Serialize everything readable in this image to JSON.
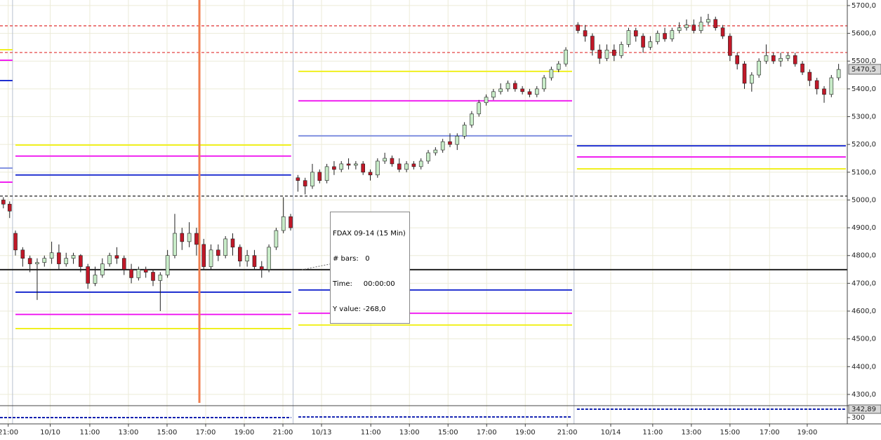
{
  "chart_data": {
    "type": "candlestick",
    "xlim": [
      -1.7,
      173.8
    ],
    "ylim": [
      4262,
      5720
    ],
    "xticks": [
      {
        "value": 0,
        "label": "21:00"
      },
      {
        "value": 8.7,
        "label": "10/10"
      },
      {
        "value": 16.9,
        "label": "11:00"
      },
      {
        "value": 24.9,
        "label": "13:00"
      },
      {
        "value": 32.9,
        "label": "15:00"
      },
      {
        "value": 40.9,
        "label": "17:00"
      },
      {
        "value": 48.9,
        "label": "19:00"
      },
      {
        "value": 56.9,
        "label": "21:00"
      },
      {
        "value": 64.9,
        "label": "10/13"
      },
      {
        "value": 75.1,
        "label": "11:00"
      },
      {
        "value": 83.1,
        "label": "13:00"
      },
      {
        "value": 91.1,
        "label": "15:00"
      },
      {
        "value": 99.1,
        "label": "17:00"
      },
      {
        "value": 107.1,
        "label": "19:00"
      },
      {
        "value": 115.8,
        "label": "21:00"
      },
      {
        "value": 124.8,
        "label": "10/14"
      },
      {
        "value": 133.5,
        "label": "11:00"
      },
      {
        "value": 141.5,
        "label": "13:00"
      },
      {
        "value": 149.5,
        "label": "15:00"
      },
      {
        "value": 157.7,
        "label": "17:00"
      },
      {
        "value": 165.5,
        "label": "19:00"
      }
    ],
    "yticks": [
      {
        "value": 4300,
        "label": "4300,0"
      },
      {
        "value": 4400,
        "label": "4400,0"
      },
      {
        "value": 4500,
        "label": "4500,0"
      },
      {
        "value": 4600,
        "label": "4600,0"
      },
      {
        "value": 4700,
        "label": "4700,0"
      },
      {
        "value": 4800,
        "label": "4800,0"
      },
      {
        "value": 4900,
        "label": "4900,0"
      },
      {
        "value": 5000,
        "label": "5000,0"
      },
      {
        "value": 5100,
        "label": "5100,0"
      },
      {
        "value": 5200,
        "label": "5200,0"
      },
      {
        "value": 5300,
        "label": "5300,0"
      },
      {
        "value": 5400,
        "label": "5400,0"
      },
      {
        "value": 5500,
        "label": "5500,0"
      },
      {
        "value": 5600,
        "label": "5600,0"
      },
      {
        "value": 5700,
        "label": "5700,0"
      }
    ],
    "grid": true,
    "up_color": "#c8ecc8",
    "down_color": "#c01828",
    "candles": {
      "x": [
        -1.0,
        0.3,
        1.5,
        3,
        4.5,
        6,
        7.5,
        9,
        10.5,
        12,
        13.5,
        15,
        16.5,
        18,
        19.5,
        21,
        22.5,
        24,
        25.5,
        27,
        28.5,
        30,
        31.5,
        33,
        34.5,
        36,
        37.5,
        39,
        40.5,
        42,
        43.5,
        45,
        46.5,
        48,
        49.5,
        51,
        52.5,
        54,
        55.5,
        57,
        58.5,
        60,
        61.5,
        63,
        64.5,
        66,
        67.5,
        69,
        70.5,
        72,
        73.5,
        75,
        76.5,
        78,
        79.5,
        81,
        82.5,
        84,
        85.5,
        87,
        88.5,
        90,
        91.5,
        93,
        94.5,
        96,
        97.5,
        99,
        100.5,
        102,
        103.5,
        105,
        106.5,
        108,
        109.5,
        111,
        112.5,
        114,
        115.5,
        118,
        119.5,
        121,
        122.5,
        124,
        125.5,
        127,
        128.5,
        130,
        131.5,
        133,
        134.5,
        136,
        137.5,
        139,
        140.5,
        142,
        143.5,
        145,
        146.5,
        148,
        149.5,
        151,
        152.5,
        154,
        155.5,
        157,
        158.5,
        160,
        161.5,
        163,
        164.5,
        166,
        167.5,
        169,
        170.5,
        172
      ],
      "open": [
        5000,
        4985,
        4880,
        4820,
        4790,
        4770,
        4775,
        4790,
        4810,
        4770,
        4790,
        4800,
        4760,
        4700,
        4730,
        4770,
        4800,
        4790,
        4750,
        4720,
        4750,
        4740,
        4710,
        4730,
        4800,
        4880,
        4850,
        4880,
        4840,
        4760,
        4820,
        4800,
        4860,
        4830,
        4780,
        4800,
        4760,
        4750,
        4830,
        4890,
        4940,
        5080,
        5070,
        5050,
        5100,
        5070,
        5120,
        5110,
        5130,
        5125,
        5130,
        5100,
        5090,
        5140,
        5150,
        5130,
        5110,
        5130,
        5120,
        5140,
        5170,
        5180,
        5210,
        5200,
        5230,
        5270,
        5310,
        5350,
        5370,
        5390,
        5400,
        5420,
        5400,
        5390,
        5380,
        5400,
        5440,
        5470,
        5490,
        5630,
        5610,
        5590,
        5540,
        5510,
        5540,
        5520,
        5560,
        5610,
        5590,
        5550,
        5570,
        5600,
        5580,
        5610,
        5620,
        5630,
        5610,
        5640,
        5650,
        5620,
        5590,
        5520,
        5490,
        5420,
        5450,
        5500,
        5520,
        5500,
        5510,
        5520,
        5490,
        5460,
        5430,
        5400,
        5380,
        5440
      ],
      "high": [
        5010,
        4995,
        4890,
        4830,
        4800,
        4790,
        4800,
        4850,
        4840,
        4810,
        4810,
        4805,
        4770,
        4760,
        4790,
        4810,
        4830,
        4800,
        4770,
        4760,
        4760,
        4750,
        4740,
        4820,
        4950,
        4900,
        4920,
        4900,
        4860,
        4840,
        4840,
        4870,
        4880,
        4840,
        4820,
        4820,
        4780,
        4840,
        4900,
        5010,
        4950,
        5090,
        5080,
        5130,
        5110,
        5130,
        5140,
        5140,
        5150,
        5140,
        5140,
        5110,
        5150,
        5170,
        5160,
        5150,
        5140,
        5140,
        5150,
        5180,
        5190,
        5220,
        5240,
        5240,
        5280,
        5320,
        5360,
        5380,
        5400,
        5420,
        5430,
        5430,
        5410,
        5400,
        5410,
        5450,
        5480,
        5500,
        5550,
        5640,
        5630,
        5600,
        5560,
        5560,
        5560,
        5570,
        5620,
        5620,
        5600,
        5590,
        5610,
        5620,
        5620,
        5640,
        5650,
        5650,
        5660,
        5670,
        5660,
        5630,
        5600,
        5530,
        5500,
        5460,
        5510,
        5560,
        5530,
        5530,
        5530,
        5530,
        5500,
        5470,
        5440,
        5410,
        5450,
        5490
      ],
      "low": [
        4970,
        4935,
        4800,
        4760,
        4740,
        4640,
        4760,
        4770,
        4750,
        4760,
        4770,
        4740,
        4680,
        4690,
        4720,
        4760,
        4770,
        4730,
        4700,
        4710,
        4720,
        4690,
        4600,
        4720,
        4790,
        4820,
        4830,
        4800,
        4750,
        4750,
        4780,
        4790,
        4800,
        4760,
        4760,
        4750,
        4720,
        4740,
        4820,
        4880,
        4890,
        5030,
        5020,
        5040,
        5060,
        5060,
        5090,
        5100,
        5110,
        5110,
        5090,
        5070,
        5080,
        5130,
        5120,
        5100,
        5100,
        5110,
        5110,
        5130,
        5160,
        5170,
        5190,
        5180,
        5220,
        5260,
        5300,
        5340,
        5360,
        5380,
        5390,
        5390,
        5380,
        5370,
        5370,
        5390,
        5430,
        5460,
        5480,
        5600,
        5570,
        5520,
        5490,
        5500,
        5500,
        5510,
        5550,
        5570,
        5530,
        5540,
        5560,
        5570,
        5570,
        5600,
        5610,
        5600,
        5600,
        5630,
        5610,
        5580,
        5500,
        5470,
        5400,
        5390,
        5440,
        5490,
        5490,
        5480,
        5500,
        5480,
        5450,
        5410,
        5380,
        5350,
        5370,
        5430
      ],
      "close": [
        4985,
        4960,
        4820,
        4790,
        4770,
        4775,
        4790,
        4810,
        4770,
        4790,
        4800,
        4760,
        4700,
        4730,
        4770,
        4800,
        4790,
        4750,
        4720,
        4750,
        4740,
        4710,
        4730,
        4800,
        4880,
        4850,
        4880,
        4840,
        4760,
        4820,
        4800,
        4860,
        4830,
        4780,
        4800,
        4760,
        4750,
        4830,
        4890,
        4940,
        4900,
        5070,
        5050,
        5100,
        5070,
        5120,
        5110,
        5130,
        5125,
        5130,
        5100,
        5090,
        5140,
        5150,
        5130,
        5110,
        5130,
        5120,
        5140,
        5170,
        5180,
        5210,
        5200,
        5230,
        5270,
        5310,
        5350,
        5370,
        5390,
        5400,
        5420,
        5400,
        5390,
        5380,
        5400,
        5440,
        5470,
        5490,
        5540,
        5610,
        5590,
        5540,
        5510,
        5540,
        5520,
        5560,
        5610,
        5590,
        5550,
        5570,
        5600,
        5580,
        5610,
        5620,
        5630,
        5610,
        5640,
        5650,
        5620,
        5590,
        5520,
        5490,
        5420,
        5450,
        5500,
        5520,
        5500,
        5510,
        5520,
        5490,
        5460,
        5430,
        5400,
        5380,
        5440,
        5470
      ]
    },
    "levels": [
      {
        "color": "#e03030",
        "dash": true,
        "y": 5627,
        "x": [
          -1.7,
          173.8
        ]
      },
      {
        "color": "#e03030",
        "dash": true,
        "y": 5531,
        "x": [
          -1.7,
          173.8
        ]
      },
      {
        "color": "#202020",
        "dash": true,
        "y": 5014,
        "x": [
          -1.7,
          173.8
        ]
      },
      {
        "color": "#202020",
        "dash": false,
        "y": 4749,
        "x": [
          -1.7,
          173.8
        ]
      },
      {
        "color": "#f0f020",
        "dash": false,
        "y": 5541,
        "x": [
          -1.7,
          0.9
        ]
      },
      {
        "color": "#f020f0",
        "dash": false,
        "y": 5503,
        "x": [
          -1.7,
          0.9
        ]
      },
      {
        "color": "#2030d0",
        "dash": false,
        "y": 5430,
        "x": [
          -1.7,
          0.9
        ]
      },
      {
        "color": "#8090e0",
        "dash": false,
        "y": 5115,
        "x": [
          -1.7,
          0.9
        ]
      },
      {
        "color": "#f020f0",
        "dash": false,
        "y": 5064,
        "x": [
          -1.7,
          0.9
        ]
      },
      {
        "color": "#f0f020",
        "dash": false,
        "y": 5198,
        "x": [
          1.5,
          58.6
        ]
      },
      {
        "color": "#f020f0",
        "dash": false,
        "y": 5158,
        "x": [
          1.5,
          58.6
        ]
      },
      {
        "color": "#2030d0",
        "dash": false,
        "y": 5090,
        "x": [
          1.5,
          58.6
        ]
      },
      {
        "color": "#2030d0",
        "dash": false,
        "y": 4668,
        "x": [
          1.5,
          58.6
        ]
      },
      {
        "color": "#f020f0",
        "dash": false,
        "y": 4588,
        "x": [
          1.5,
          58.6
        ]
      },
      {
        "color": "#f0f020",
        "dash": false,
        "y": 4537,
        "x": [
          1.5,
          58.6
        ]
      },
      {
        "color": "#f0f020",
        "dash": false,
        "y": 5463,
        "x": [
          60.1,
          116.8
        ]
      },
      {
        "color": "#f020f0",
        "dash": false,
        "y": 5357,
        "x": [
          60.1,
          116.8
        ]
      },
      {
        "color": "#8090e0",
        "dash": false,
        "y": 5231,
        "x": [
          60.1,
          116.8
        ]
      },
      {
        "color": "#2030d0",
        "dash": false,
        "y": 4676,
        "x": [
          60.1,
          116.8
        ]
      },
      {
        "color": "#f020f0",
        "dash": false,
        "y": 4592,
        "x": [
          60.1,
          116.8
        ]
      },
      {
        "color": "#f0f020",
        "dash": false,
        "y": 4550,
        "x": [
          60.1,
          116.8
        ]
      },
      {
        "color": "#2030d0",
        "dash": false,
        "y": 5195,
        "x": [
          117.8,
          173.5
        ]
      },
      {
        "color": "#f020f0",
        "dash": false,
        "y": 5155,
        "x": [
          117.8,
          173.5
        ]
      },
      {
        "color": "#f0f020",
        "dash": false,
        "y": 5112,
        "x": [
          117.8,
          173.5
        ]
      }
    ],
    "sessions": [
      0.9,
      59.0,
      117.2
    ],
    "marker_line": {
      "x": 39.6,
      "color": "#f08050"
    },
    "last_price": {
      "value": 5470.5,
      "label": "5470,5"
    },
    "tooltip": {
      "title": "FDAX 09-14 (15 Min)",
      "lines": [
        "# bars:   0",
        "Time:     00:00:00",
        "Y value: -268,0"
      ]
    },
    "indicator": {
      "ylim": [
        268,
        357
      ],
      "yticks": [
        300
      ],
      "last": {
        "value": 342.89,
        "label": "342,89"
      },
      "color": "#1020b0",
      "segments": [
        {
          "x": [
            -1.7,
            58.6
          ],
          "y": 300
        },
        {
          "x": [
            60.1,
            116.8
          ],
          "y": 303
        },
        {
          "x": [
            117.8,
            173.5
          ],
          "y": 342.89
        }
      ]
    }
  }
}
